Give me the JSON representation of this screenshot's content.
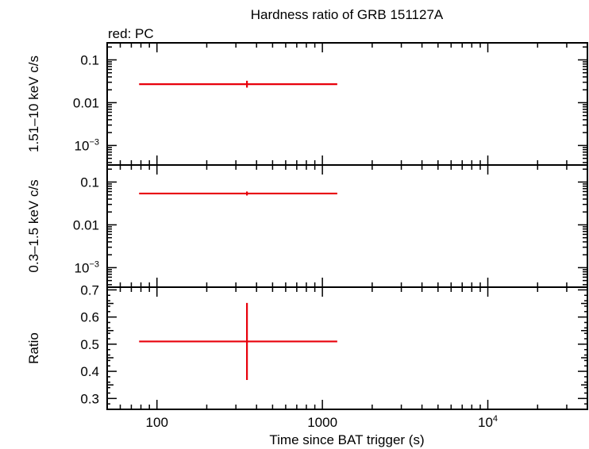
{
  "chart_data": {
    "title": "Hardness ratio of GRB 151127A",
    "legend_note": "red: PC",
    "xlabel": "Time since BAT trigger (s)",
    "x_axis": {
      "scale": "log",
      "range": [
        50,
        40000
      ],
      "tick_labels": [
        {
          "value": 100,
          "label": "100",
          "sup": ""
        },
        {
          "value": 1000,
          "label": "1000",
          "sup": ""
        },
        {
          "value": 10000,
          "label": "10",
          "sup": "4"
        }
      ]
    },
    "panels": [
      {
        "id": "hard",
        "type": "scatter",
        "ylabel": "1.51–10 keV c/s",
        "y_scale": "log",
        "ylim": [
          0.00035,
          0.25
        ],
        "tick_labels": [
          {
            "value": 0.1,
            "label": "0.1",
            "sup": ""
          },
          {
            "value": 0.01,
            "label": "0.01",
            "sup": ""
          },
          {
            "value": 0.001,
            "label": "10",
            "sup": "−3"
          }
        ],
        "series": [
          {
            "color": "#e8000b",
            "points": [
              {
                "x": 350,
                "x_lo": 78,
                "x_hi": 1230,
                "y": 0.027,
                "y_lo": 0.0225,
                "y_hi": 0.0325
              }
            ]
          }
        ]
      },
      {
        "id": "soft",
        "type": "scatter",
        "ylabel": "0.3–1.5 keV c/s",
        "y_scale": "log",
        "ylim": [
          0.00035,
          0.25
        ],
        "tick_labels": [
          {
            "value": 0.1,
            "label": "0.1",
            "sup": ""
          },
          {
            "value": 0.01,
            "label": "0.01",
            "sup": ""
          },
          {
            "value": 0.001,
            "label": "10",
            "sup": "−3"
          }
        ],
        "series": [
          {
            "color": "#e8000b",
            "points": [
              {
                "x": 350,
                "x_lo": 78,
                "x_hi": 1230,
                "y": 0.054,
                "y_lo": 0.0485,
                "y_hi": 0.06
              }
            ]
          }
        ]
      },
      {
        "id": "ratio",
        "type": "scatter",
        "ylabel": "Ratio",
        "y_scale": "linear",
        "ylim": [
          0.26,
          0.71
        ],
        "tick_labels": [
          {
            "value": 0.3,
            "label": "0.3",
            "sup": ""
          },
          {
            "value": 0.4,
            "label": "0.4",
            "sup": ""
          },
          {
            "value": 0.5,
            "label": "0.5",
            "sup": ""
          },
          {
            "value": 0.6,
            "label": "0.6",
            "sup": ""
          },
          {
            "value": 0.7,
            "label": "0.7",
            "sup": ""
          }
        ],
        "series": [
          {
            "color": "#e8000b",
            "points": [
              {
                "x": 350,
                "x_lo": 78,
                "x_hi": 1230,
                "y": 0.51,
                "y_lo": 0.368,
                "y_hi": 0.652
              }
            ]
          }
        ]
      }
    ]
  }
}
